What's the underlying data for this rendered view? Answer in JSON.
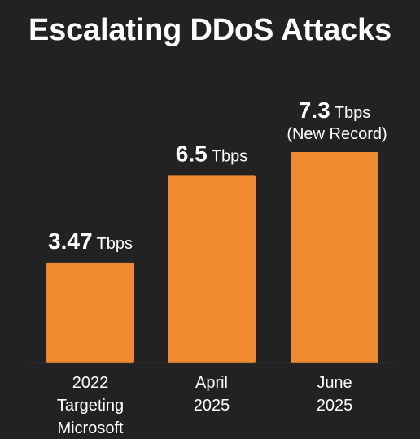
{
  "page": {
    "title": "Escalating DDoS Attacks"
  },
  "colors": {
    "background": "#222222",
    "bar": "#F08A2E",
    "text": "#FFFFFF",
    "axis": "#3A3A3A"
  },
  "chart_data": {
    "type": "bar",
    "title": "Escalating DDoS Attacks",
    "xlabel": "",
    "ylabel": "",
    "unit": "Tbps",
    "categories": [
      [
        "2022",
        "Targeting",
        "Microsoft"
      ],
      [
        "April",
        "2025"
      ],
      [
        "June",
        "2025"
      ]
    ],
    "values": [
      3.47,
      6.5,
      7.3
    ],
    "value_labels": [
      "3.47",
      "6.5",
      "7.3"
    ],
    "notes": [
      "",
      "",
      "(New Record)"
    ],
    "ylim": [
      0,
      7.3
    ],
    "grid": false,
    "legend": "none"
  }
}
